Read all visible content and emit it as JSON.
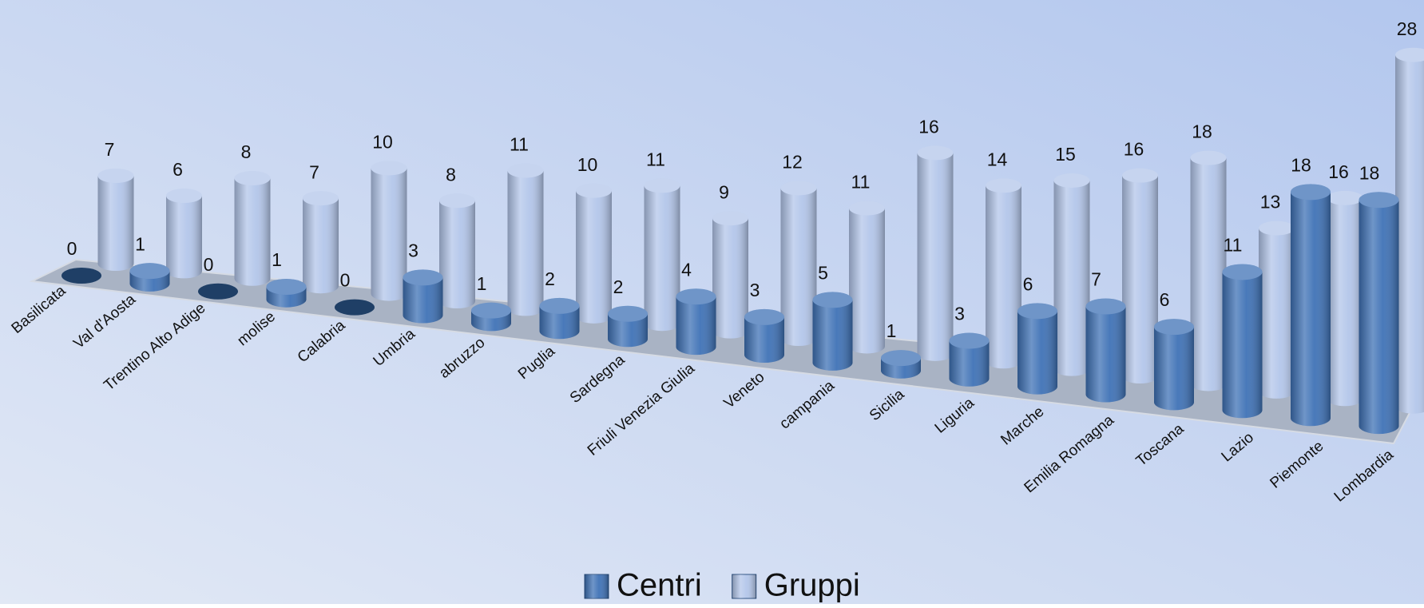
{
  "chart_data": {
    "type": "bar3d",
    "categories": [
      "Basilicata",
      "Val d'Aosta",
      "Trentino Alto Adige",
      "molise",
      "Calabria",
      "Umbria",
      "abruzzo",
      "Puglia",
      "Sardegna",
      "Friuli Venezia Giulia",
      "Veneto",
      "campania",
      "Sicilia",
      "Liguria",
      "Marche",
      "Emilia Romagna",
      "Toscana",
      "Lazio",
      "Piemonte",
      "Lombardia"
    ],
    "series": [
      {
        "name": "Centri",
        "color": "#3f72b6",
        "values": [
          0,
          1,
          0,
          1,
          0,
          3,
          1,
          2,
          2,
          4,
          3,
          5,
          1,
          3,
          6,
          7,
          6,
          11,
          18,
          18
        ]
      },
      {
        "name": "Gruppi",
        "color": "#b3c6ea",
        "values": [
          7,
          6,
          8,
          7,
          10,
          8,
          11,
          10,
          11,
          9,
          12,
          11,
          16,
          14,
          15,
          16,
          18,
          13,
          16,
          28
        ]
      }
    ],
    "legend": "bottom"
  }
}
